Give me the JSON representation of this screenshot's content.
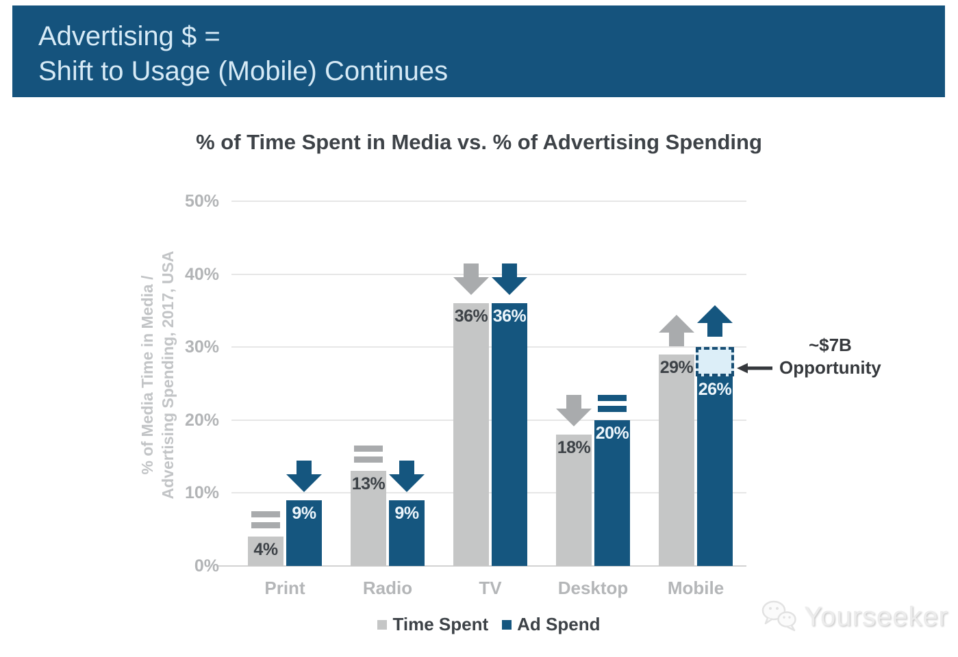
{
  "header": {
    "title_line1": "Advertising $ =",
    "title_line2": "Shift to Usage (Mobile) Continues",
    "background_color": "#15537d",
    "text_color": "#d6eaf6"
  },
  "chart_data": {
    "type": "bar",
    "title": "% of Time Spent in Media vs. % of Advertising Spending",
    "ylabel_line1": "% of Media Time in Media /",
    "ylabel_line2": "Advertising Spending, 2017, USA",
    "ylim": [
      0,
      50
    ],
    "grid": true,
    "legend_position": "bottom",
    "yticks": [
      {
        "label": "50%",
        "value": 50
      },
      {
        "label": "40%",
        "value": 40
      },
      {
        "label": "30%",
        "value": 30
      },
      {
        "label": "20%",
        "value": 20
      },
      {
        "label": "10%",
        "value": 10
      },
      {
        "label": "0%",
        "value": 0
      }
    ],
    "categories": [
      "Print",
      "Radio",
      "TV",
      "Desktop",
      "Mobile"
    ],
    "series": [
      {
        "name": "Time Spent",
        "color": "#c5c6c6",
        "trend_color": "#a9abad",
        "label_color": "#3d4247",
        "values": [
          4,
          13,
          36,
          18,
          29
        ],
        "value_labels": [
          "4%",
          "13%",
          "36%",
          "18%",
          "29%"
        ],
        "trends": [
          "flat",
          "flat",
          "down",
          "down",
          "up"
        ]
      },
      {
        "name": "Ad Spend",
        "color": "#15567f",
        "trend_color": "#15567f",
        "label_color": "#edf6fc",
        "values": [
          9,
          9,
          36,
          20,
          26
        ],
        "value_labels": [
          "9%",
          "9%",
          "36%",
          "20%",
          "26%"
        ],
        "trends": [
          "down",
          "down",
          "down",
          "flat",
          "up"
        ]
      }
    ],
    "annotation": {
      "line1": "~$7B",
      "line2": "Opportunity",
      "category": "Mobile",
      "series": "Ad Spend",
      "gap_from": 26,
      "gap_to": 30,
      "box_fill": "#dceef8",
      "box_border": "#174e74",
      "arrow_color": "#36393d"
    }
  },
  "legend": {
    "items": [
      {
        "label": "Time Spent",
        "color": "#c5c6c6"
      },
      {
        "label": "Ad Spend",
        "color": "#15567f"
      }
    ]
  },
  "watermark": {
    "text": "Yourseeker"
  }
}
